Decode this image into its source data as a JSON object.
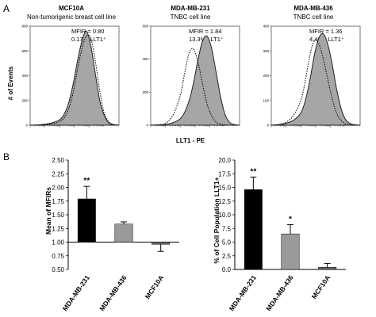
{
  "panels": {
    "a_label": "A",
    "b_label": "B"
  },
  "chart_data": [
    {
      "type": "area",
      "title": "MCF10A",
      "subtitle": "Non-tumorigenic breast cell line",
      "annotations": [
        "MFIR = 0.80",
        "0.17% LLT1⁺"
      ],
      "y_tick_labels": [
        "0",
        "200",
        "400",
        "600",
        "800"
      ],
      "ylim": [
        0,
        800
      ],
      "ylabel": "# of Events",
      "xlabel": "LLT1 - PE",
      "x": [
        0,
        0.5,
        1,
        1.5,
        2,
        2.3,
        2.6,
        2.9,
        3.2,
        3.5,
        3.8,
        4.1,
        4.4,
        4.7,
        5.0,
        5.3,
        5.6,
        6
      ],
      "series": [
        {
          "style": "filled",
          "values": [
            0,
            2,
            8,
            20,
            45,
            90,
            180,
            330,
            520,
            680,
            760,
            640,
            420,
            200,
            80,
            20,
            5,
            0
          ]
        },
        {
          "style": "dotted",
          "values": [
            0,
            2,
            6,
            12,
            30,
            60,
            130,
            260,
            450,
            620,
            720,
            700,
            520,
            280,
            100,
            30,
            8,
            0
          ]
        }
      ]
    },
    {
      "type": "area",
      "title": "MDA-MB-231",
      "subtitle": "TNBC cell line",
      "annotations": [
        "MFIR = 1.84",
        "13.3% LLT1⁺"
      ],
      "y_tick_labels": [
        "0",
        "200",
        "400",
        "600"
      ],
      "ylim": [
        0,
        600
      ],
      "x": [
        0,
        0.5,
        1,
        1.5,
        2,
        2.3,
        2.6,
        2.9,
        3.2,
        3.5,
        3.8,
        4.1,
        4.4,
        4.7,
        5.0,
        5.3,
        5.6,
        6
      ],
      "series": [
        {
          "style": "filled",
          "values": [
            0,
            2,
            5,
            15,
            40,
            80,
            150,
            260,
            400,
            510,
            540,
            470,
            330,
            180,
            70,
            20,
            5,
            0
          ]
        },
        {
          "style": "dotted",
          "values": [
            0,
            3,
            12,
            60,
            180,
            320,
            440,
            460,
            380,
            250,
            130,
            60,
            20,
            8,
            2,
            0,
            0,
            0
          ]
        }
      ]
    },
    {
      "type": "area",
      "title": "MDA-MB-436",
      "subtitle": "TNBC cell line",
      "annotations": [
        "MFIR = 1.36",
        "4.46% LLT1⁺"
      ],
      "y_tick_labels": [
        "0",
        "100",
        "200",
        "300",
        "400"
      ],
      "ylim": [
        0,
        400
      ],
      "x": [
        0,
        0.5,
        1,
        1.5,
        2,
        2.3,
        2.6,
        2.9,
        3.2,
        3.5,
        3.8,
        4.1,
        4.4,
        4.7,
        5.0,
        5.3,
        5.6,
        6
      ],
      "series": [
        {
          "style": "filled",
          "values": [
            0,
            2,
            8,
            20,
            50,
            100,
            180,
            280,
            350,
            370,
            330,
            250,
            150,
            70,
            25,
            8,
            2,
            0
          ]
        },
        {
          "style": "dotted",
          "values": [
            0,
            3,
            12,
            40,
            100,
            180,
            280,
            340,
            330,
            270,
            190,
            110,
            50,
            20,
            6,
            2,
            0,
            0
          ]
        }
      ]
    },
    {
      "type": "bar",
      "categories": [
        "MDA-MB-231",
        "MDA-MB-436",
        "MCF10A"
      ],
      "values": [
        1.79,
        1.33,
        0.96
      ],
      "errors": [
        0.23,
        0.04,
        0.13
      ],
      "error_direction": [
        "up",
        "up",
        "down"
      ],
      "colors": [
        "#000000",
        "#9a9a9a",
        "#6a6a6a"
      ],
      "significance": [
        "**",
        "",
        ""
      ],
      "ylabel": "Mean of MFIRs",
      "ylim": [
        0.5,
        2.5
      ],
      "baseline": 1.0,
      "y_tick_labels": [
        "0.50",
        "0.75",
        "1.00",
        "1.25",
        "1.50",
        "1.75",
        "2.00",
        "2.25",
        "2.50"
      ]
    },
    {
      "type": "bar",
      "categories": [
        "MDA-MB-231",
        "MDA-MB-436",
        "MCF10A"
      ],
      "values": [
        14.6,
        6.5,
        0.4
      ],
      "errors": [
        2.3,
        1.7,
        0.7
      ],
      "error_direction": [
        "up",
        "up",
        "up"
      ],
      "colors": [
        "#000000",
        "#9a9a9a",
        "#6a6a6a"
      ],
      "significance": [
        "**",
        "*",
        ""
      ],
      "ylabel": "% of Cell Population LLT1+",
      "ylim": [
        0,
        20
      ],
      "y_tick_labels": [
        "0.0",
        "2.5",
        "5.0",
        "7.5",
        "10.0",
        "12.5",
        "15.0",
        "17.5",
        "20.0"
      ]
    }
  ]
}
